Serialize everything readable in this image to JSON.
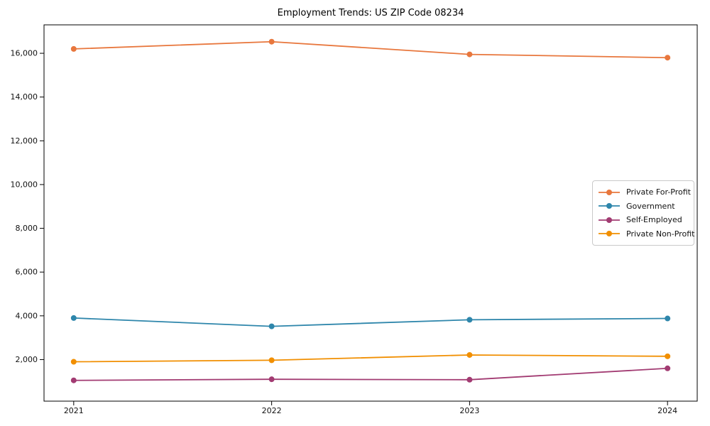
{
  "chart_data": {
    "type": "line",
    "title": "Employment Trends: US ZIP Code 08234",
    "xlabel": "",
    "ylabel": "",
    "categories": [
      2021,
      2022,
      2023,
      2024
    ],
    "x_tick_labels": [
      "2021",
      "2022",
      "2023",
      "2024"
    ],
    "y_ticks": [
      2000,
      4000,
      6000,
      8000,
      10000,
      12000,
      14000,
      16000
    ],
    "y_tick_labels": [
      "2,000",
      "4,000",
      "6,000",
      "8,000",
      "10,000",
      "12,000",
      "14,000",
      "16,000"
    ],
    "xlim": [
      2020.85,
      2024.15
    ],
    "ylim": [
      100,
      17300
    ],
    "grid": false,
    "legend_position": "center-right",
    "axes_color": "#000000",
    "background_color": "#ffffff",
    "series": [
      {
        "name": "Private For-Profit",
        "color": "#e8773d",
        "values": [
          16200,
          16530,
          15950,
          15800
        ]
      },
      {
        "name": "Government",
        "color": "#2e86ab",
        "values": [
          3900,
          3520,
          3820,
          3880
        ]
      },
      {
        "name": "Self-Employed",
        "color": "#a23b72",
        "values": [
          1050,
          1100,
          1080,
          1600
        ]
      },
      {
        "name": "Private Non-Profit",
        "color": "#f18f01",
        "values": [
          1900,
          1970,
          2210,
          2150
        ]
      }
    ]
  }
}
